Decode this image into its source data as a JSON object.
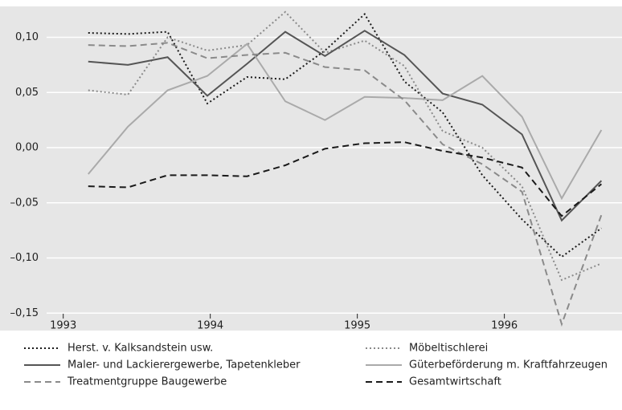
{
  "chart_data": {
    "type": "line",
    "x": [
      1993.17,
      1993.44,
      1993.71,
      1993.98,
      1994.25,
      1994.51,
      1994.78,
      1995.05,
      1995.32,
      1995.58,
      1995.85,
      1996.12,
      1996.39,
      1996.66
    ],
    "series": [
      {
        "name": "Herst. v. Kalksandstein usw.",
        "color": "#1a1a1a",
        "style": "dotted",
        "values": [
          0.104,
          0.103,
          0.105,
          0.04,
          0.064,
          0.062,
          0.088,
          0.121,
          0.06,
          0.032,
          -0.025,
          -0.065,
          -0.099,
          -0.073
        ]
      },
      {
        "name": "Möbeltischlerei",
        "color": "#8a8a8a",
        "style": "dotted",
        "values": [
          0.052,
          0.048,
          0.1,
          0.088,
          0.093,
          0.123,
          0.086,
          0.097,
          0.074,
          0.015,
          0.0,
          -0.035,
          -0.12,
          -0.105
        ]
      },
      {
        "name": "Maler- und Lackierergewerbe, Tapetenkleber",
        "color": "#555555",
        "style": "solid",
        "values": [
          0.078,
          0.075,
          0.082,
          0.047,
          0.076,
          0.105,
          0.083,
          0.106,
          0.084,
          0.049,
          0.039,
          0.012,
          -0.066,
          -0.03
        ]
      },
      {
        "name": "Güterbeförderung m. Kraftfahrzeugen",
        "color": "#aaaaaa",
        "style": "solid",
        "values": [
          -0.024,
          0.019,
          0.052,
          0.065,
          0.094,
          0.042,
          0.025,
          0.046,
          0.045,
          0.043,
          0.065,
          0.028,
          -0.046,
          0.016
        ]
      },
      {
        "name": "Treatmentgruppe Baugewerbe",
        "color": "#8a8a8a",
        "style": "dashed",
        "values": [
          0.093,
          0.092,
          0.095,
          0.081,
          0.084,
          0.086,
          0.073,
          0.07,
          0.043,
          0.003,
          -0.015,
          -0.04,
          -0.16,
          -0.061
        ]
      },
      {
        "name": "Gesamtwirtschaft",
        "color": "#1a1a1a",
        "style": "dashed",
        "values": [
          -0.035,
          -0.036,
          -0.025,
          -0.025,
          -0.026,
          -0.016,
          -0.001,
          0.004,
          0.005,
          -0.003,
          -0.009,
          -0.018,
          -0.062,
          -0.033
        ]
      }
    ],
    "xlim": [
      1992.57,
      1996.8
    ],
    "xticks": [
      1993,
      1994,
      1995,
      1996
    ],
    "ylim": [
      -0.152,
      0.128
    ],
    "yticks": [
      {
        "value": 0.1,
        "label": "0,10"
      },
      {
        "value": 0.05,
        "label": "0,05"
      },
      {
        "value": 0,
        "label": "0,00"
      },
      {
        "value": -0.05,
        "label": "–0,05"
      },
      {
        "value": -0.1,
        "label": "–0,10"
      },
      {
        "value": -0.15,
        "label": "–0,15"
      }
    ],
    "grid": true,
    "legend": "bottom"
  }
}
